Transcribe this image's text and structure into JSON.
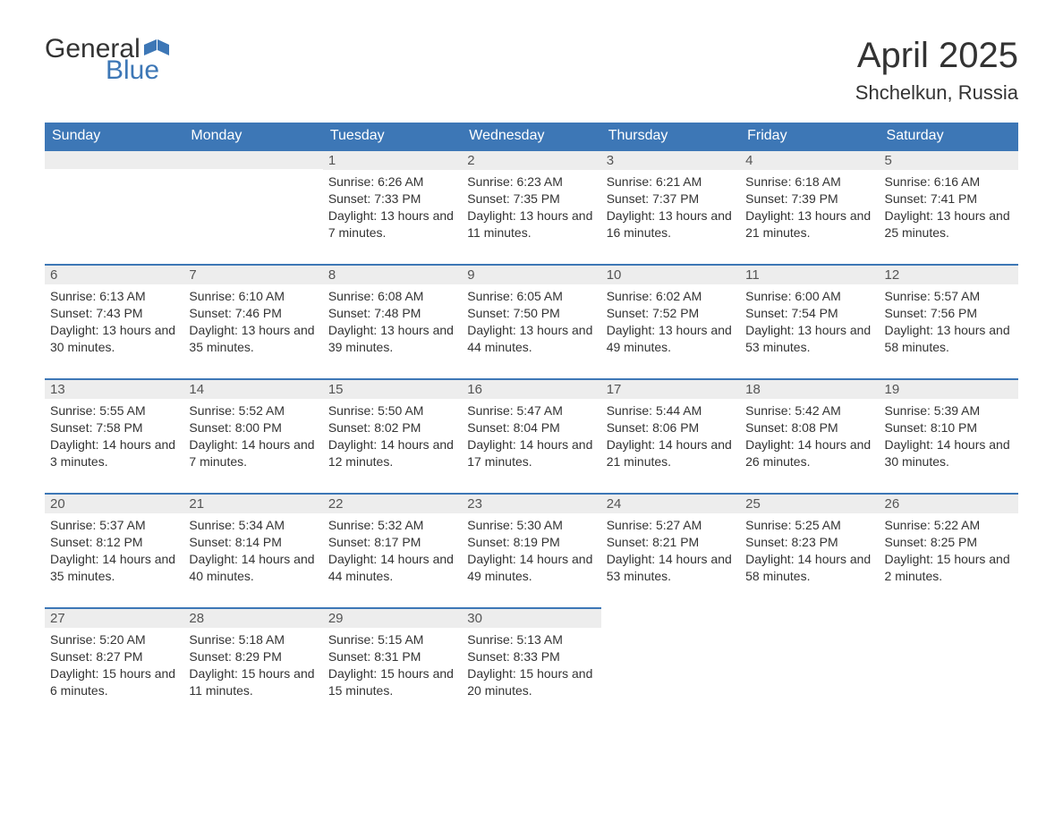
{
  "logo": {
    "word1": "General",
    "word2": "Blue",
    "flag_color": "#3d77b6"
  },
  "title": "April 2025",
  "location": "Shchelkun, Russia",
  "colors": {
    "header_bg": "#3d77b6",
    "header_text": "#ffffff",
    "daynum_bg": "#ededed",
    "daynum_border": "#3d77b6",
    "body_text": "#333333",
    "page_bg": "#ffffff"
  },
  "typography": {
    "title_fontsize": 40,
    "location_fontsize": 22,
    "header_fontsize": 16,
    "cell_fontsize": 14,
    "family": "Arial"
  },
  "layout": {
    "columns": 7,
    "rows": 5,
    "first_weekday": "Sunday",
    "month_start_column": 2
  },
  "weekdays": [
    "Sunday",
    "Monday",
    "Tuesday",
    "Wednesday",
    "Thursday",
    "Friday",
    "Saturday"
  ],
  "labels": {
    "sunrise": "Sunrise:",
    "sunset": "Sunset:",
    "daylight": "Daylight:"
  },
  "days": [
    {
      "n": 1,
      "sunrise": "6:26 AM",
      "sunset": "7:33 PM",
      "daylight": "13 hours and 7 minutes."
    },
    {
      "n": 2,
      "sunrise": "6:23 AM",
      "sunset": "7:35 PM",
      "daylight": "13 hours and 11 minutes."
    },
    {
      "n": 3,
      "sunrise": "6:21 AM",
      "sunset": "7:37 PM",
      "daylight": "13 hours and 16 minutes."
    },
    {
      "n": 4,
      "sunrise": "6:18 AM",
      "sunset": "7:39 PM",
      "daylight": "13 hours and 21 minutes."
    },
    {
      "n": 5,
      "sunrise": "6:16 AM",
      "sunset": "7:41 PM",
      "daylight": "13 hours and 25 minutes."
    },
    {
      "n": 6,
      "sunrise": "6:13 AM",
      "sunset": "7:43 PM",
      "daylight": "13 hours and 30 minutes."
    },
    {
      "n": 7,
      "sunrise": "6:10 AM",
      "sunset": "7:46 PM",
      "daylight": "13 hours and 35 minutes."
    },
    {
      "n": 8,
      "sunrise": "6:08 AM",
      "sunset": "7:48 PM",
      "daylight": "13 hours and 39 minutes."
    },
    {
      "n": 9,
      "sunrise": "6:05 AM",
      "sunset": "7:50 PM",
      "daylight": "13 hours and 44 minutes."
    },
    {
      "n": 10,
      "sunrise": "6:02 AM",
      "sunset": "7:52 PM",
      "daylight": "13 hours and 49 minutes."
    },
    {
      "n": 11,
      "sunrise": "6:00 AM",
      "sunset": "7:54 PM",
      "daylight": "13 hours and 53 minutes."
    },
    {
      "n": 12,
      "sunrise": "5:57 AM",
      "sunset": "7:56 PM",
      "daylight": "13 hours and 58 minutes."
    },
    {
      "n": 13,
      "sunrise": "5:55 AM",
      "sunset": "7:58 PM",
      "daylight": "14 hours and 3 minutes."
    },
    {
      "n": 14,
      "sunrise": "5:52 AM",
      "sunset": "8:00 PM",
      "daylight": "14 hours and 7 minutes."
    },
    {
      "n": 15,
      "sunrise": "5:50 AM",
      "sunset": "8:02 PM",
      "daylight": "14 hours and 12 minutes."
    },
    {
      "n": 16,
      "sunrise": "5:47 AM",
      "sunset": "8:04 PM",
      "daylight": "14 hours and 17 minutes."
    },
    {
      "n": 17,
      "sunrise": "5:44 AM",
      "sunset": "8:06 PM",
      "daylight": "14 hours and 21 minutes."
    },
    {
      "n": 18,
      "sunrise": "5:42 AM",
      "sunset": "8:08 PM",
      "daylight": "14 hours and 26 minutes."
    },
    {
      "n": 19,
      "sunrise": "5:39 AM",
      "sunset": "8:10 PM",
      "daylight": "14 hours and 30 minutes."
    },
    {
      "n": 20,
      "sunrise": "5:37 AM",
      "sunset": "8:12 PM",
      "daylight": "14 hours and 35 minutes."
    },
    {
      "n": 21,
      "sunrise": "5:34 AM",
      "sunset": "8:14 PM",
      "daylight": "14 hours and 40 minutes."
    },
    {
      "n": 22,
      "sunrise": "5:32 AM",
      "sunset": "8:17 PM",
      "daylight": "14 hours and 44 minutes."
    },
    {
      "n": 23,
      "sunrise": "5:30 AM",
      "sunset": "8:19 PM",
      "daylight": "14 hours and 49 minutes."
    },
    {
      "n": 24,
      "sunrise": "5:27 AM",
      "sunset": "8:21 PM",
      "daylight": "14 hours and 53 minutes."
    },
    {
      "n": 25,
      "sunrise": "5:25 AM",
      "sunset": "8:23 PM",
      "daylight": "14 hours and 58 minutes."
    },
    {
      "n": 26,
      "sunrise": "5:22 AM",
      "sunset": "8:25 PM",
      "daylight": "15 hours and 2 minutes."
    },
    {
      "n": 27,
      "sunrise": "5:20 AM",
      "sunset": "8:27 PM",
      "daylight": "15 hours and 6 minutes."
    },
    {
      "n": 28,
      "sunrise": "5:18 AM",
      "sunset": "8:29 PM",
      "daylight": "15 hours and 11 minutes."
    },
    {
      "n": 29,
      "sunrise": "5:15 AM",
      "sunset": "8:31 PM",
      "daylight": "15 hours and 15 minutes."
    },
    {
      "n": 30,
      "sunrise": "5:13 AM",
      "sunset": "8:33 PM",
      "daylight": "15 hours and 20 minutes."
    }
  ]
}
